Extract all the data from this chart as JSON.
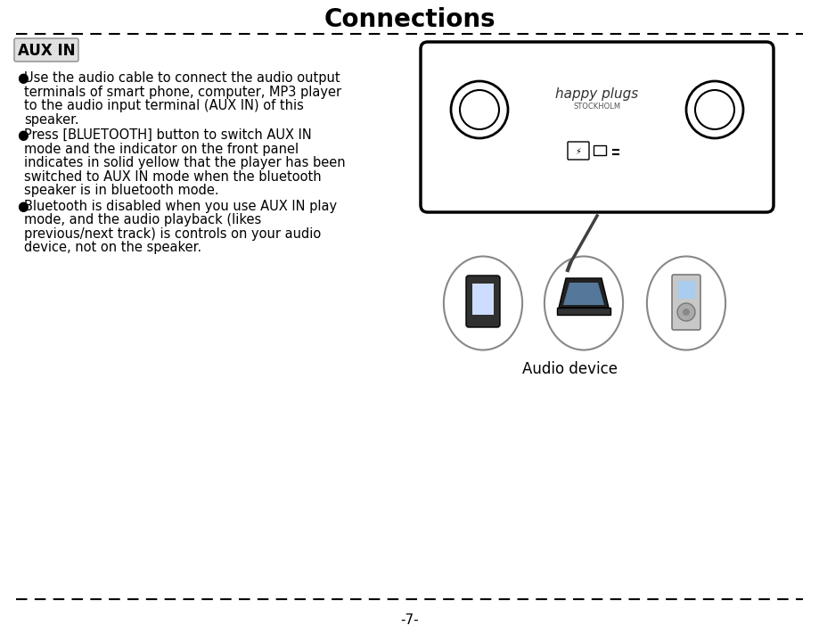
{
  "title": "Connections",
  "title_fontsize": 20,
  "title_fontweight": "bold",
  "page_number": "-7-",
  "aux_in_label": "AUX IN",
  "audio_device_label": "Audio device",
  "bg_color": "#ffffff",
  "text_color": "#000000",
  "aux_in_bg": "#e0e0e0",
  "dashed_line_color": "#000000",
  "body_fontsize": 10.5,
  "label_fontsize": 11,
  "lines1": [
    "Use the audio cable to connect the audio output",
    "terminals of smart phone, computer, MP3 player",
    "to the audio input terminal (AUX IN) of this",
    "speaker."
  ],
  "lines2": [
    "Press [BLUETOOTH] button to switch AUX IN",
    "mode and the indicator on the front panel",
    "indicates in solid yellow that the player has been",
    "switched to AUX IN mode when the bluetooth",
    "speaker is in bluetooth mode."
  ],
  "lines3": [
    "Bluetooth is disabled when you use AUX IN play",
    "mode, and the audio playback (likes",
    "previous/next track) is controls on your audio",
    "device, not on the speaker."
  ]
}
